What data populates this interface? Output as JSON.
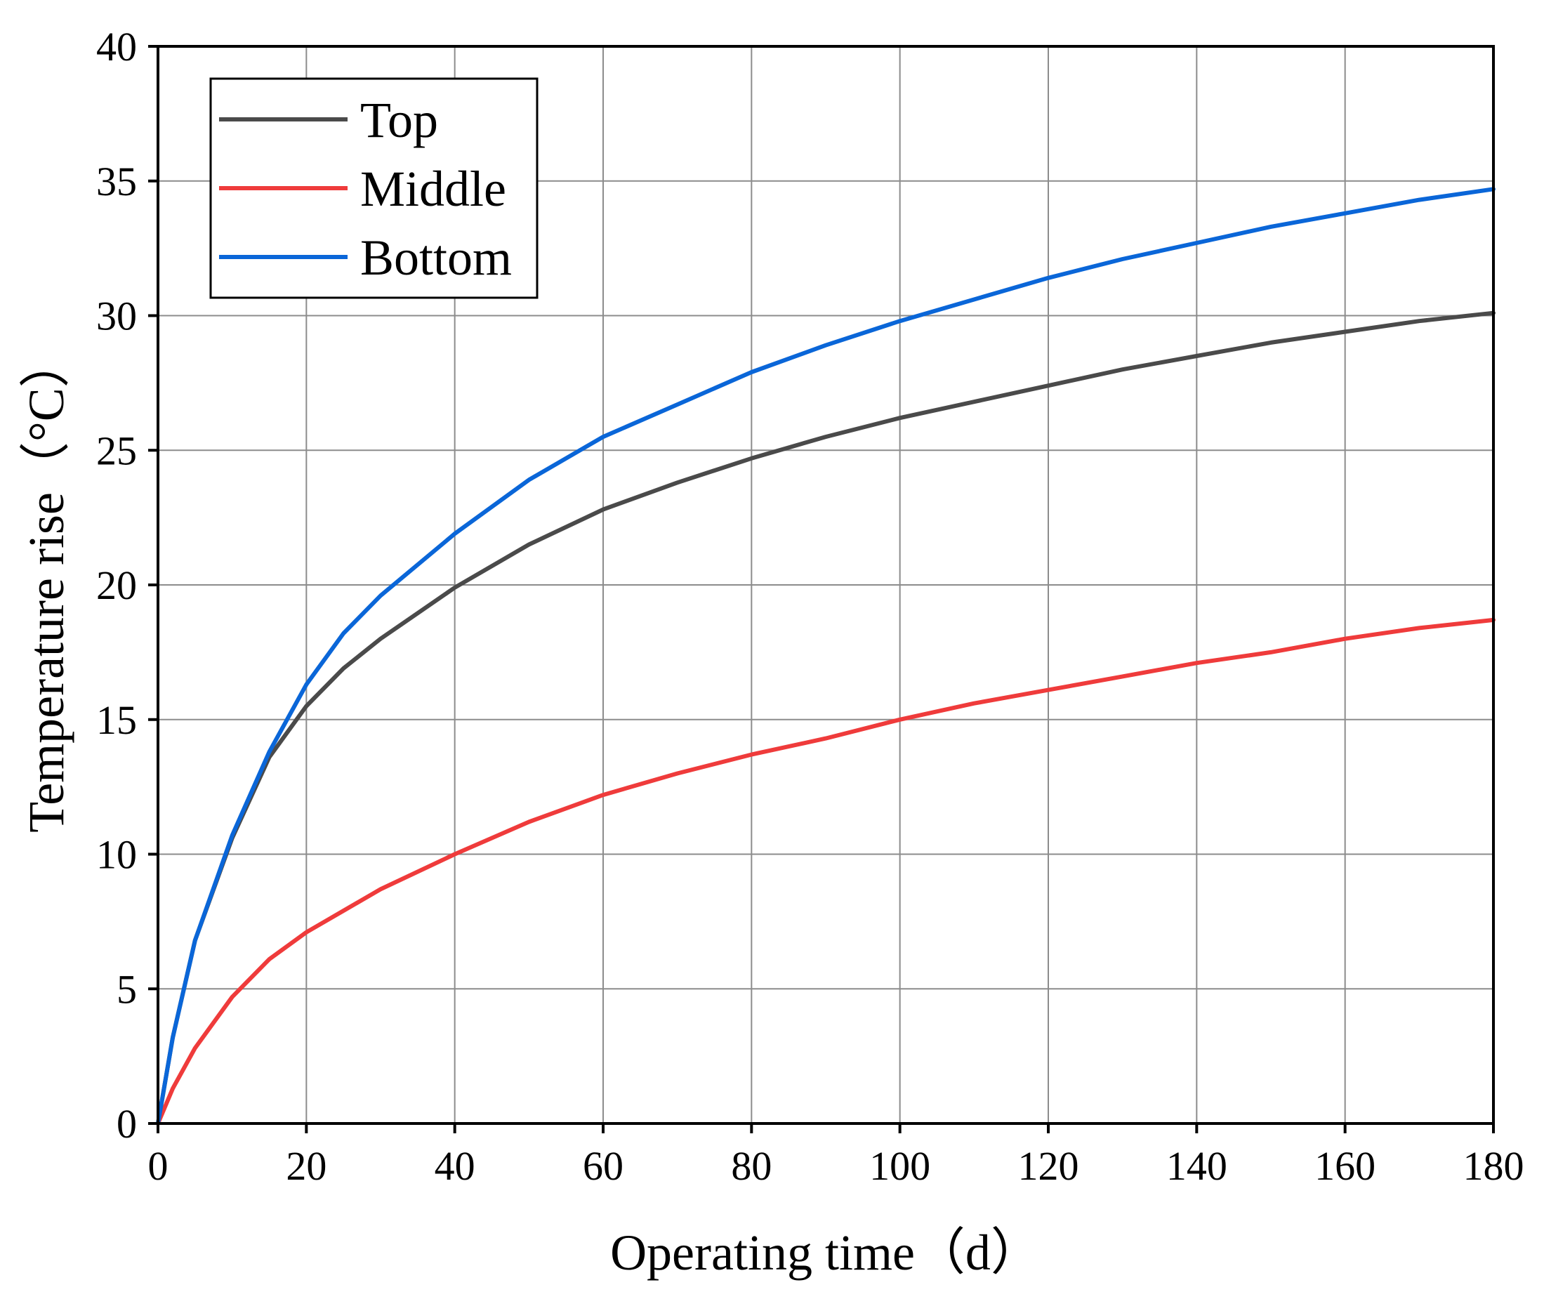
{
  "chart_data": {
    "type": "line",
    "xlabel": "Operating time（d）",
    "ylabel": "Temperature rise（°C）",
    "xlim": [
      0,
      180
    ],
    "ylim": [
      0,
      40
    ],
    "xticks": [
      0,
      20,
      40,
      60,
      80,
      100,
      120,
      140,
      160,
      180
    ],
    "yticks": [
      0,
      5,
      10,
      15,
      20,
      25,
      30,
      35,
      40
    ],
    "grid": true,
    "legend_position": "top-left",
    "series": [
      {
        "name": "Top",
        "color": "#4a4a4a",
        "x": [
          0,
          2,
          5,
          10,
          15,
          20,
          25,
          30,
          40,
          50,
          60,
          70,
          80,
          90,
          100,
          110,
          120,
          130,
          140,
          150,
          160,
          170,
          180
        ],
        "y": [
          0,
          3.2,
          6.8,
          10.6,
          13.6,
          15.5,
          16.9,
          18.0,
          19.9,
          21.5,
          22.8,
          23.8,
          24.7,
          25.5,
          26.2,
          26.8,
          27.4,
          28.0,
          28.5,
          29.0,
          29.4,
          29.8,
          30.1
        ]
      },
      {
        "name": "Middle",
        "color": "#ef3b3b",
        "x": [
          0,
          2,
          5,
          10,
          15,
          20,
          25,
          30,
          40,
          50,
          60,
          70,
          80,
          90,
          100,
          110,
          120,
          130,
          140,
          150,
          160,
          170,
          180
        ],
        "y": [
          0,
          1.3,
          2.8,
          4.7,
          6.1,
          7.1,
          7.9,
          8.7,
          10.0,
          11.2,
          12.2,
          13.0,
          13.7,
          14.3,
          15.0,
          15.6,
          16.1,
          16.6,
          17.1,
          17.5,
          18.0,
          18.4,
          18.7
        ]
      },
      {
        "name": "Bottom",
        "color": "#0a66d8",
        "x": [
          0,
          2,
          5,
          10,
          15,
          20,
          25,
          30,
          40,
          50,
          60,
          70,
          80,
          90,
          100,
          110,
          120,
          130,
          140,
          150,
          160,
          170,
          180
        ],
        "y": [
          0,
          3.2,
          6.8,
          10.7,
          13.8,
          16.3,
          18.2,
          19.6,
          21.9,
          23.9,
          25.5,
          26.7,
          27.9,
          28.9,
          29.8,
          30.6,
          31.4,
          32.1,
          32.7,
          33.3,
          33.8,
          34.3,
          34.7
        ]
      }
    ]
  }
}
